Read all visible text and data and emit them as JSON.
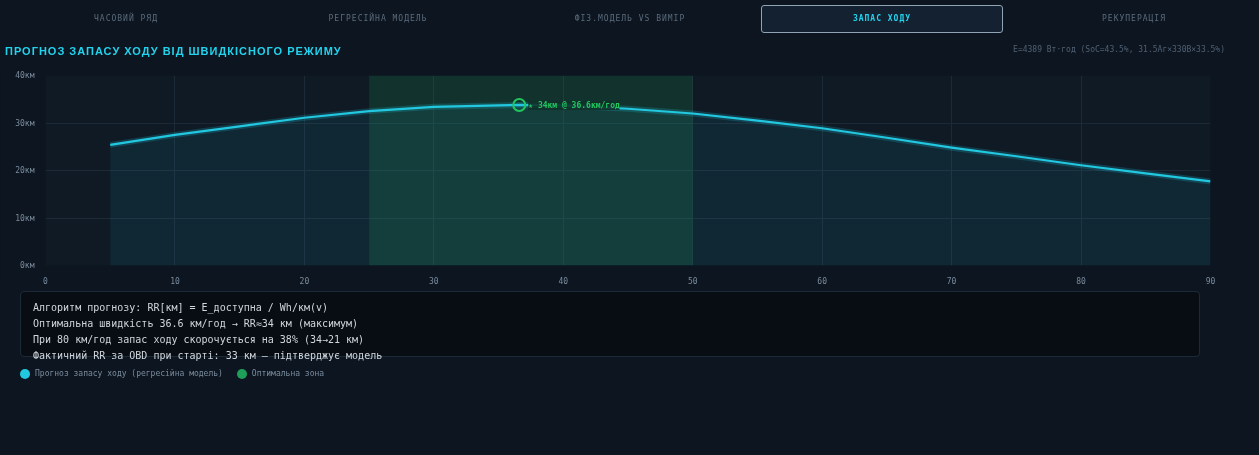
{
  "chart_data": {
    "type": "area",
    "title": "ПРОГНОЗ ЗАПАСУ ХОДУ ВІД ШВИДКІСНОГО РЕЖИМУ",
    "subtitle": "E=4389 Вт·год (SoC=43.5%, 31.5Аг×330В×33.5%)",
    "x": [
      5,
      10,
      15,
      20,
      25,
      30,
      36.6,
      40,
      45,
      50,
      55,
      60,
      65,
      70,
      75,
      80,
      85,
      90
    ],
    "series": [
      {
        "name": "Прогноз запасу ходу (регресійна модель)",
        "color": "#22c8e0",
        "values": [
          25.4,
          27.5,
          29.3,
          31.1,
          32.5,
          33.4,
          33.8,
          33.7,
          33.0,
          32.0,
          30.5,
          28.9,
          26.9,
          24.8,
          23.0,
          21.1,
          19.4,
          17.7
        ]
      },
      {
        "type": "scatter",
        "color": "#22c55e",
        "x": [
          36.6
        ],
        "values": [
          33.8
        ],
        "marker": "circle"
      }
    ],
    "bands": [
      {
        "axis": "x",
        "from": 25,
        "to": 50,
        "label": "Оптимальна зона",
        "color": "#1f9e5a"
      }
    ],
    "xlim": [
      0,
      90
    ],
    "ylim": [
      0,
      40
    ],
    "xticks": [
      0,
      10,
      20,
      30,
      40,
      50,
      60,
      70,
      80,
      90
    ],
    "yticks": [
      {
        "value": 0,
        "label": "0км"
      },
      {
        "value": 10,
        "label": "10км"
      },
      {
        "value": 20,
        "label": "20км"
      },
      {
        "value": 30,
        "label": "30км"
      },
      {
        "value": 40,
        "label": "40км"
      }
    ],
    "grid": true,
    "legend": "bottom left",
    "annotations": [
      {
        "text": "★ 34км @ 36.6км/год",
        "x": 36.6,
        "y": 33.8
      },
      "ЧАСОВИЙ РЯД",
      "РЕГРЕСІЙНА МОДЕЛЬ",
      "ФІЗ.МОДЕЛЬ VS ВИМІР",
      "ЗАПАС ХОДУ",
      "РЕКУПЕРАЦІЯ",
      "Алгоритм прогнозу: RR[км] = E_доступна / Wh/км(v)",
      "Оптимальна швидкість 36.6 км/год → RR≈34 км (максимум)",
      "При 80 км/год запас ходу скорочується на 38% (34→21 км)",
      "Фактичний RR за OBD при старті: 33 км — підтверджує модель"
    ]
  }
}
